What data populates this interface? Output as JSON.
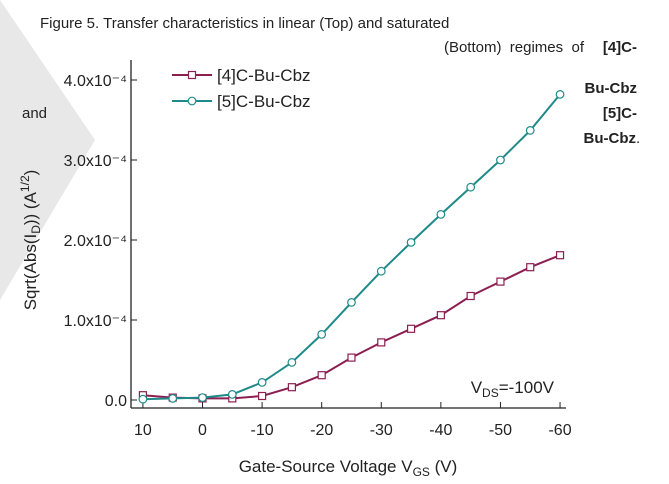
{
  "chart_data": {
    "type": "line",
    "caption": [
      "Figure 5. Transfer characteristics in linear (Top) and saturated",
      "(Bottom)  regimes  of",
      "[4]C-",
      "Bu-Cbz",
      "and",
      "[5]C-",
      "Bu-Cbz",
      "."
    ],
    "xlabel": [
      "Gate-Source Voltage V",
      "GS",
      " (V)"
    ],
    "ylabel": [
      "Sqrt(Abs(I",
      "D",
      ")) (A",
      "1/2",
      ")"
    ],
    "annotation": [
      "V",
      "DS",
      "=-100V"
    ],
    "x": [
      10,
      5,
      0,
      -5,
      -10,
      -15,
      -20,
      -25,
      -30,
      -35,
      -40,
      -45,
      -50,
      -55,
      -60
    ],
    "series": [
      {
        "name": "[4]C-Bu-Cbz",
        "color": "#8b1f52",
        "marker": "square",
        "values": [
          6e-06,
          3e-06,
          2e-06,
          2e-06,
          5e-06,
          1.6e-05,
          3.1e-05,
          5.3e-05,
          7.2e-05,
          8.9e-05,
          0.000106,
          0.00013,
          0.000148,
          0.000166,
          0.000181
        ]
      },
      {
        "name": "[5]C-Bu-Cbz",
        "color": "#1f8a8a",
        "marker": "circle",
        "values": [
          1e-06,
          2e-06,
          3e-06,
          7e-06,
          2.2e-05,
          4.7e-05,
          8.2e-05,
          0.000122,
          0.000161,
          0.000197,
          0.000232,
          0.000266,
          0.0003,
          0.000337,
          0.000382
        ]
      }
    ],
    "xlim": [
      12,
      -61
    ],
    "xticks": [
      10,
      0,
      -10,
      -20,
      -30,
      -40,
      -50,
      -60
    ],
    "ylim": [
      -1e-05,
      0.000425
    ],
    "yticks": [
      {
        "value": 0,
        "label": "0.0"
      },
      {
        "value": 0.0001,
        "label": "1.0x10⁻⁴"
      },
      {
        "value": 0.0002,
        "label": "2.0x10⁻⁴"
      },
      {
        "value": 0.0003,
        "label": "3.0x10⁻⁴"
      },
      {
        "value": 0.0004,
        "label": "4.0x10⁻⁴"
      }
    ],
    "legend": "upper-left"
  }
}
